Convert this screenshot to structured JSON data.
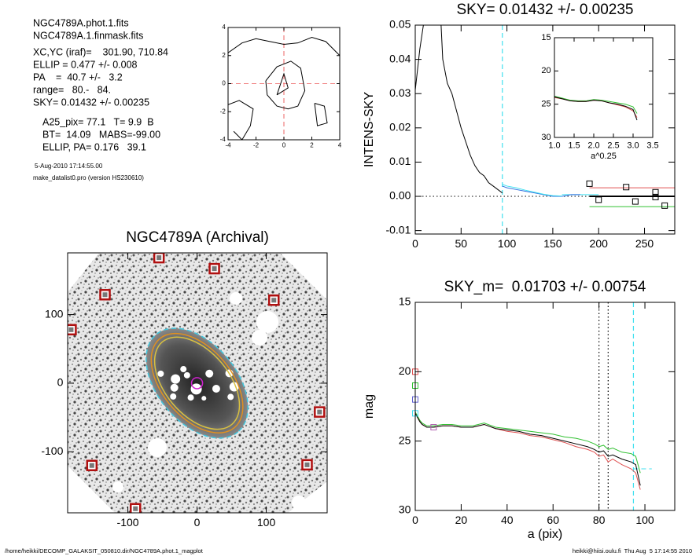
{
  "info": {
    "lines": [
      "NGC4789A.phot.1.fits",
      "NGC4789A.1.finmask.fits",
      "XC,YC (iraf)=    301.90, 710.84",
      "ELLIP = 0.477 +/- 0.008",
      "PA    =  40.7 +/-   3.2",
      "range=   80.-   84.",
      "SKY= 0.01432 +/- 0.00235",
      "A25_pix= 77.1   T= 9.9  B",
      "BT=  14.09   MABS=-99.00",
      "ELLIP, PA= 0.176   39.1"
    ],
    "date": "5-Aug-2010 17:14:55.00",
    "program": "make_datalist0.pro (version HS230610)"
  },
  "footer": {
    "left": "/home/heikki/DECOMP_GALAKSIT_050810.dir/NGC4789A.phot.1_magplot",
    "right": "heikki@hiisi.oulu.fi  Thu Aug  5 17:14:55 2010"
  },
  "chart_data": [
    {
      "type": "contour",
      "xlim": [
        -4,
        4
      ],
      "ylim": [
        -4,
        4
      ],
      "xticks": [
        -4,
        -2,
        0,
        2,
        4
      ],
      "yticks": [
        -4,
        -2,
        0,
        2,
        4
      ],
      "series": [
        {
          "color": "#000000",
          "x": [
            -4,
            -3,
            -2,
            -1,
            0,
            1,
            2,
            3,
            4
          ],
          "y": [
            2.2,
            2.9,
            3.2,
            3.0,
            2.8,
            2.9,
            3.3,
            3.0,
            2.0
          ]
        },
        {
          "color": "#000000",
          "x": [
            -1.3,
            -0.5,
            0.5,
            1.2,
            1.5,
            1.0,
            0.3,
            -0.5,
            -1.2,
            -1.3
          ],
          "y": [
            0.2,
            1.2,
            1.6,
            1.1,
            -0.5,
            -1.6,
            -1.8,
            -1.6,
            -0.8,
            0.2
          ]
        },
        {
          "color": "#000000",
          "x": [
            -0.5,
            0,
            0.3,
            -0.5
          ],
          "y": [
            -0.8,
            0.7,
            -0.3,
            -0.8
          ]
        },
        {
          "color": "#000000",
          "x": [
            -4,
            -3.2,
            -2.2,
            -2.4,
            -3.0,
            -3.6
          ],
          "y": [
            -1.5,
            -1.2,
            -1.8,
            -3.0,
            -4,
            -3.4
          ]
        },
        {
          "color": "#000000",
          "x": [
            2.2,
            2.9,
            3.1,
            2.4,
            2.2
          ],
          "y": [
            -1.4,
            -1.6,
            -2.8,
            -3.0,
            -1.4
          ]
        }
      ],
      "vlines": [
        {
          "value": 0,
          "color": "#f08080",
          "style": "dashed"
        }
      ],
      "hlines": [
        {
          "value": 0,
          "color": "#f08080",
          "style": "dashed"
        }
      ]
    },
    {
      "type": "line",
      "title": "SKY= 0.01432 +/- 0.00235",
      "y_label": "INTENS-SKY",
      "xlim": [
        0,
        283
      ],
      "ylim": [
        -0.011,
        0.05
      ],
      "xticks": [
        0,
        50,
        100,
        150,
        200,
        250
      ],
      "yticks": [
        -0.01,
        {
          "value": 0,
          "label": "0.00"
        },
        0.01,
        0.02,
        0.03,
        0.04,
        0.05
      ],
      "series": [
        {
          "color": "#000000",
          "x": [
            0,
            5,
            10,
            15,
            20,
            25,
            28,
            30,
            35,
            40,
            45,
            50,
            55,
            60,
            65,
            70,
            75,
            80,
            85,
            90,
            95
          ],
          "y": [
            0.031,
            0.043,
            0.052,
            0.058,
            0.05,
            0.06,
            0.051,
            0.04,
            0.033,
            0.03,
            0.025,
            0.02,
            0.016,
            0.012,
            0.009,
            0.007,
            0.006,
            0.004,
            0.003,
            0.002,
            0.001
          ]
        },
        {
          "color": "#3070e0",
          "x": [
            95,
            100,
            110,
            120,
            130,
            140,
            150,
            160,
            170,
            180
          ],
          "y": [
            0.003,
            0.0025,
            0.002,
            0.0015,
            0.001,
            0.0005,
            0,
            0,
            0.0005,
            0.0005
          ]
        },
        {
          "color": "#40e0f0",
          "x": [
            95,
            100,
            110,
            120,
            130,
            140,
            150,
            160
          ],
          "y": [
            0.0035,
            0.003,
            0.0025,
            0.0018,
            0.0012,
            0.0006,
            0.0002,
            0.0001
          ]
        }
      ],
      "squares": {
        "color": "#000000",
        "x": [
          190,
          230,
          262,
          262,
          200,
          240,
          272
        ],
        "y": [
          0.0037,
          0.0027,
          0.0012,
          -0.0002,
          -0.001,
          -0.0015,
          -0.0027
        ]
      },
      "vlines": [
        {
          "value": 95,
          "color": "#40e0f0",
          "style": "dashed"
        }
      ],
      "hlines": [
        {
          "value": 0,
          "color": "#000000",
          "style": "dotted"
        },
        {
          "value": 0.0025,
          "color": "#e05050",
          "from": 190
        },
        {
          "value": 0.0005,
          "color": "#40e0f0",
          "from": 160,
          "to": 200
        },
        {
          "value": 0,
          "color": "#000000",
          "from": 190,
          "style": "thick"
        },
        {
          "value": -0.003,
          "color": "#30c030",
          "from": 190
        }
      ]
    },
    {
      "type": "line",
      "x_label": "a^0.25",
      "xlim": [
        1.0,
        3.5
      ],
      "ylim": [
        30,
        15
      ],
      "xticks": [
        {
          "value": 1,
          "label": "1.0"
        },
        1.5,
        {
          "value": 2,
          "label": "2.0"
        },
        2.5,
        {
          "value": 3,
          "label": "3.0"
        },
        3.5
      ],
      "yticks": [
        15,
        20,
        25,
        30
      ],
      "series": [
        {
          "color": "#30c030",
          "x": [
            1.0,
            1.2,
            1.4,
            1.6,
            1.8,
            2.0,
            2.2,
            2.4,
            2.6,
            2.8,
            3.0,
            3.1
          ],
          "y": [
            23.8,
            24.1,
            24.4,
            24.5,
            24.5,
            24.3,
            24.4,
            24.6,
            24.8,
            25.0,
            25.4,
            26.4
          ]
        },
        {
          "color": "#e05050",
          "x": [
            1.0,
            1.2,
            1.4,
            1.6,
            1.8,
            2.0,
            2.2,
            2.4,
            2.6,
            2.8,
            3.0,
            3.1
          ],
          "y": [
            24.0,
            24.2,
            24.5,
            24.6,
            24.6,
            24.4,
            24.5,
            24.8,
            25.1,
            25.4,
            26.0,
            27.0
          ]
        },
        {
          "color": "#000000",
          "x": [
            1.0,
            1.2,
            1.4,
            1.6,
            1.8,
            2.0,
            2.2,
            2.4,
            2.6,
            2.8,
            3.0,
            3.1
          ],
          "y": [
            23.9,
            24.2,
            24.5,
            24.6,
            24.6,
            24.4,
            24.5,
            24.8,
            25.0,
            25.3,
            25.8,
            27.4
          ]
        }
      ]
    },
    {
      "type": "image",
      "title": "NGC4789A (Archival)",
      "xlim": [
        -187,
        188
      ],
      "ylim": [
        -189,
        190
      ],
      "xticks": [
        -100,
        0,
        100
      ],
      "yticks": [
        -100,
        0,
        100
      ],
      "masked_stars": {
        "color": "#b01010",
        "x": [
          -182,
          -133,
          -55,
          25,
          111,
          177,
          159,
          -152,
          -89
        ],
        "y": [
          78,
          129,
          183,
          167,
          121,
          -42,
          -119,
          -120,
          -183
        ]
      },
      "ellipses": [
        {
          "color": "#40c8e0",
          "a": 92,
          "b": 57,
          "angle": 50,
          "style": "dashed"
        },
        {
          "color": "#e09020",
          "a": 84,
          "b": 50,
          "angle": 50
        },
        {
          "color": "#d8c040",
          "a": 78,
          "b": 46,
          "angle": 50
        },
        {
          "color": "#d020d0",
          "a": 8,
          "b": 8,
          "angle": 0
        }
      ]
    },
    {
      "type": "line",
      "title": "SKY_m=  0.01703 +/- 0.00754",
      "x_label": "a (pix)",
      "y_label": "mag",
      "xlim": [
        0,
        113
      ],
      "ylim": [
        30,
        15
      ],
      "xticks": [
        0,
        20,
        40,
        60,
        80,
        100
      ],
      "yticks": [
        15,
        20,
        25,
        30
      ],
      "series": [
        {
          "color": "#30c030",
          "x": [
            0,
            1,
            2,
            3,
            5,
            8,
            12,
            16,
            20,
            25,
            30,
            35,
            40,
            45,
            50,
            55,
            60,
            65,
            70,
            75,
            78,
            80,
            82,
            84,
            86,
            90,
            94,
            96,
            98
          ],
          "y": [
            22.9,
            23.2,
            23.5,
            23.7,
            23.9,
            23.9,
            23.8,
            23.8,
            23.9,
            23.9,
            23.7,
            24.0,
            24.1,
            24.2,
            24.3,
            24.4,
            24.5,
            24.7,
            24.8,
            25.0,
            25.2,
            25.4,
            25.3,
            25.6,
            25.5,
            25.8,
            25.9,
            26.1,
            27.3
          ]
        },
        {
          "color": "#e05050",
          "x": [
            0,
            1,
            2,
            3,
            5,
            8,
            12,
            16,
            20,
            25,
            30,
            35,
            40,
            45,
            50,
            55,
            60,
            65,
            70,
            75,
            78,
            80,
            82,
            84,
            86,
            90,
            94,
            96,
            98
          ],
          "y": [
            23.0,
            23.3,
            23.6,
            23.8,
            24.0,
            24.0,
            23.9,
            23.9,
            24.0,
            24.0,
            23.8,
            24.1,
            24.3,
            24.4,
            24.6,
            24.7,
            24.9,
            25.1,
            25.4,
            25.6,
            25.8,
            26.1,
            26.0,
            26.5,
            26.3,
            26.7,
            27.0,
            27.3,
            28.5
          ]
        },
        {
          "color": "#000000",
          "x": [
            0,
            1,
            2,
            3,
            5,
            8,
            12,
            16,
            20,
            25,
            30,
            35,
            40,
            45,
            50,
            55,
            60,
            65,
            70,
            75,
            78,
            80,
            82,
            84,
            86,
            90,
            94,
            96,
            98
          ],
          "y": [
            23.0,
            23.3,
            23.6,
            23.8,
            24.0,
            24.0,
            23.9,
            23.9,
            24.0,
            24.0,
            23.8,
            24.1,
            24.2,
            24.3,
            24.5,
            24.6,
            24.8,
            25.0,
            25.2,
            25.4,
            25.6,
            25.8,
            25.7,
            26.1,
            26.0,
            26.3,
            26.5,
            26.7,
            28.2
          ]
        }
      ],
      "squares": {
        "color": [
          "#e05050",
          "#30c030",
          "#6060d0",
          "#40e0f0",
          "#b060b0"
        ],
        "x": [
          0,
          0,
          0,
          0,
          8
        ],
        "y": [
          20,
          21,
          22,
          23,
          24
        ]
      },
      "vlines": [
        {
          "value": 80,
          "color": "#000000",
          "style": "dotted"
        },
        {
          "value": 84,
          "color": "#000000",
          "style": "dotted"
        },
        {
          "value": 95,
          "color": "#40e0f0",
          "style": "dashed"
        }
      ],
      "hlines": [
        {
          "value": 27,
          "color": "#40e0f0",
          "style": "dashed",
          "from": 95,
          "to": 103
        }
      ]
    }
  ]
}
